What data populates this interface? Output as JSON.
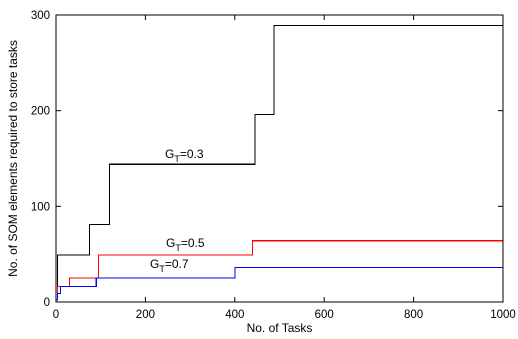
{
  "chart_data": {
    "type": "line",
    "title": "",
    "xlabel": "No. of Tasks",
    "ylabel": "No. of SOM elements required to store tasks",
    "xlim": [
      0,
      1000
    ],
    "ylim": [
      0,
      300
    ],
    "xticks": [
      "0",
      "200",
      "400",
      "600",
      "800",
      "1000"
    ],
    "yticks": [
      "0",
      "100",
      "200",
      "300"
    ],
    "grid": false,
    "legend": "none",
    "step": true,
    "series": [
      {
        "name": "G_T=0.3",
        "label_main": "G",
        "label_sub": "T",
        "label_rest": "=0.3",
        "color": "#000000",
        "x": [
          0,
          3,
          75,
          120,
          445,
          488,
          1000
        ],
        "y": [
          2,
          49,
          81,
          144,
          196,
          289,
          289
        ]
      },
      {
        "name": "G_T=0.5",
        "label_main": "G",
        "label_sub": "T",
        "label_rest": "=0.5",
        "color": "#ff0000",
        "x": [
          0,
          3,
          30,
          95,
          440,
          1000
        ],
        "y": [
          2,
          16,
          25,
          49,
          64,
          64
        ]
      },
      {
        "name": "G_T=0.7",
        "label_main": "G",
        "label_sub": "T",
        "label_rest": "=0.7",
        "color": "#0000ff",
        "x": [
          0,
          3,
          10,
          90,
          400,
          1000
        ],
        "y": [
          2,
          9,
          16,
          25,
          36,
          36
        ]
      }
    ]
  }
}
